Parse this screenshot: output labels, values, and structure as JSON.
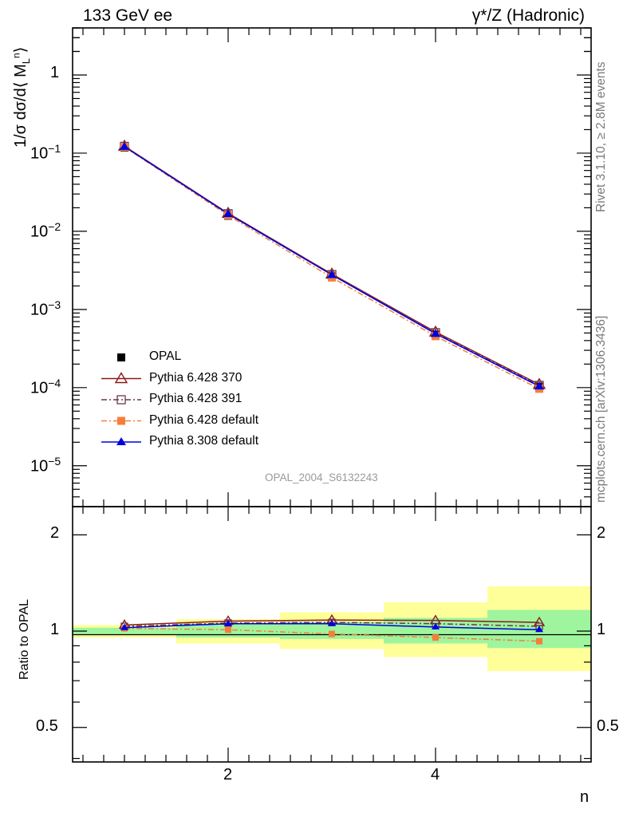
{
  "header": {
    "left_title": "133 GeV ee",
    "right_title": "γ*/Z (Hadronic)"
  },
  "side_text": {
    "rivet": "Rivet 3.1.10, ≥ 2.8M events",
    "mcplots": "mcplots.cern.ch [arXiv:1306.3436]"
  },
  "analysis_label": "OPAL_2004_S6132243",
  "axes": {
    "xlabel": "n",
    "ylabel_top": "1/σ dσ/d⟨ M",
    "ylabel_top_sub": "L",
    "ylabel_top_sup": "n",
    "ylabel_top_end": "⟩",
    "ylabel_bottom": "Ratio to OPAL",
    "x_ticks": [
      "2",
      "4"
    ],
    "y_ticks_top": [
      "1",
      "10",
      "10",
      "10",
      "10",
      "10"
    ],
    "y_ticks_top_exp": [
      "",
      "−1",
      "−2",
      "−3",
      "−4",
      "−5"
    ],
    "y_ticks_bottom": [
      "2",
      "1",
      "0.5"
    ],
    "y_ticks_bottom_right": [
      "2",
      "1",
      "0.5"
    ]
  },
  "legend": [
    {
      "label": "OPAL",
      "color": "#000000",
      "marker": "filled-square",
      "line": "none"
    },
    {
      "label": "Pythia 6.428 370",
      "color": "#8b1a1a",
      "marker": "open-triangle",
      "line": "solid"
    },
    {
      "label": "Pythia 6.428 391",
      "color": "#6b3a4b",
      "marker": "open-square",
      "line": "dashdot"
    },
    {
      "label": "Pythia 6.428 default",
      "color": "#f57f3a",
      "marker": "filled-square",
      "line": "dashdot"
    },
    {
      "label": "Pythia 8.308 default",
      "color": "#0000e0",
      "marker": "filled-triangle",
      "line": "solid"
    }
  ],
  "chart_data": [
    {
      "type": "line",
      "panel": "main",
      "x": [
        1,
        2,
        3,
        4,
        5
      ],
      "xlim": [
        0.5,
        5.5
      ],
      "yscale": "log",
      "ylim": [
        3e-06,
        4
      ],
      "series": [
        {
          "name": "OPAL",
          "values": [
            0.118,
            0.0158,
            0.00262,
            0.000475,
            0.000103
          ]
        },
        {
          "name": "Pythia 6.428 370",
          "values": [
            0.123,
            0.017,
            0.00284,
            0.000515,
            0.00011
          ]
        },
        {
          "name": "Pythia 6.428 391",
          "values": [
            0.122,
            0.0168,
            0.0028,
            0.000505,
            0.000107
          ]
        },
        {
          "name": "Pythia 6.428 default",
          "values": [
            0.12,
            0.016,
            0.00256,
            0.000455,
            9.65e-05
          ]
        },
        {
          "name": "Pythia 8.308 default",
          "values": [
            0.121,
            0.0167,
            0.00277,
            0.00049,
            0.000104
          ]
        }
      ]
    },
    {
      "type": "line",
      "panel": "ratio",
      "x": [
        1,
        2,
        3,
        4,
        5
      ],
      "xlim": [
        0.5,
        5.5
      ],
      "yscale": "log",
      "ylim": [
        0.39,
        2.45
      ],
      "bands": {
        "edges": [
          0.5,
          1.5,
          2.5,
          3.5,
          4.5,
          5.5
        ],
        "inner": [
          [
            0.975,
            1.025
          ],
          [
            0.955,
            1.055
          ],
          [
            0.945,
            1.07
          ],
          [
            0.915,
            1.1
          ],
          [
            0.885,
            1.165
          ]
        ],
        "outer": [
          [
            0.955,
            1.045
          ],
          [
            0.915,
            1.09
          ],
          [
            0.88,
            1.145
          ],
          [
            0.83,
            1.23
          ],
          [
            0.75,
            1.38
          ]
        ],
        "inner_color": "#9ef59e",
        "outer_color": "#ffff99"
      },
      "series": [
        {
          "name": "Pythia 6.428 370",
          "values": [
            1.045,
            1.075,
            1.083,
            1.08,
            1.065
          ]
        },
        {
          "name": "Pythia 6.428 391",
          "values": [
            1.035,
            1.06,
            1.065,
            1.055,
            1.035
          ]
        },
        {
          "name": "Pythia 6.428 default",
          "values": [
            1.02,
            1.01,
            0.98,
            0.955,
            0.93
          ]
        },
        {
          "name": "Pythia 8.308 default",
          "values": [
            1.025,
            1.055,
            1.055,
            1.03,
            1.01
          ]
        }
      ]
    }
  ]
}
